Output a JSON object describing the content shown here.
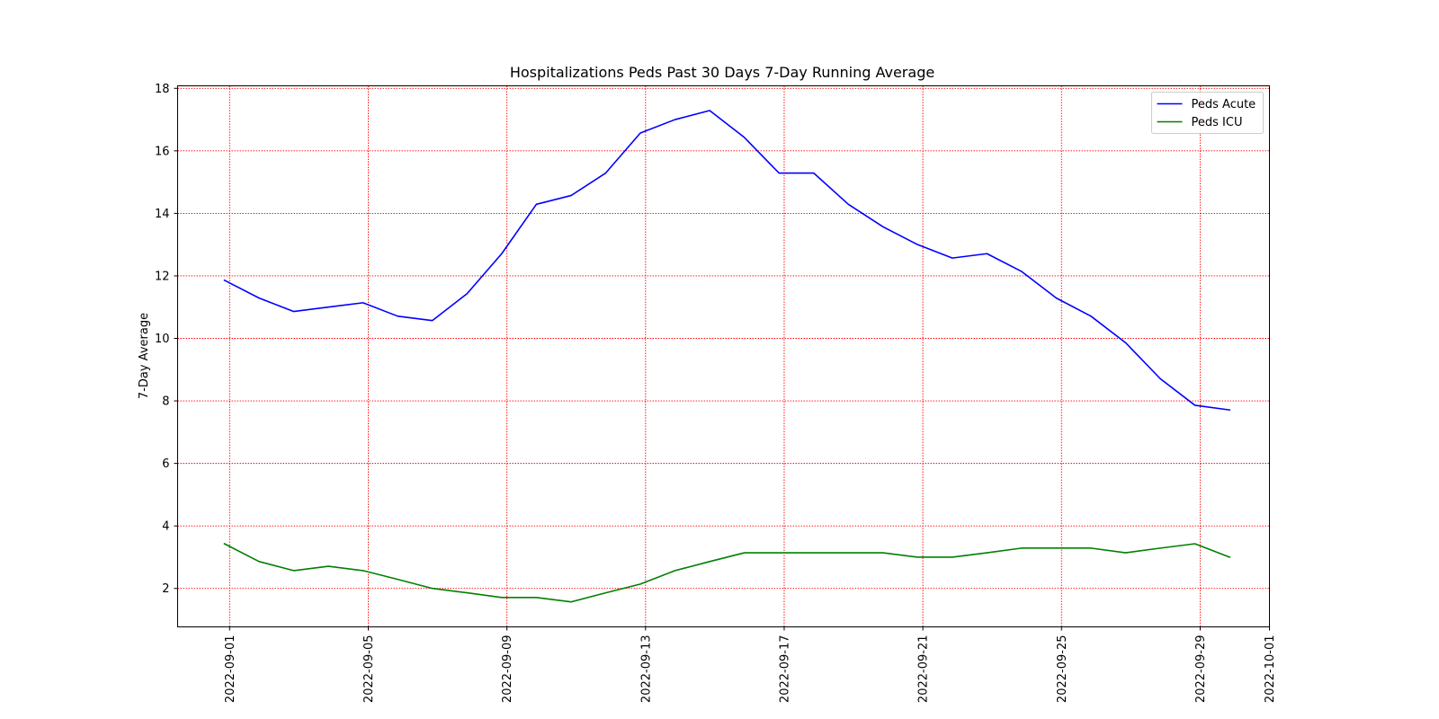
{
  "chart_data": {
    "type": "line",
    "title": "Hospitalizations Peds Past 30 Days 7-Day Running Average",
    "xlabel": "",
    "ylabel": "7-Day Average",
    "x_tick_labels": [
      "2022-09-01",
      "2022-09-05",
      "2022-09-09",
      "2022-09-13",
      "2022-09-17",
      "2022-09-21",
      "2022-09-25",
      "2022-09-29",
      "2022-10-01"
    ],
    "x_ticks_days": [
      1,
      5,
      9,
      13,
      17,
      21,
      25,
      29,
      31
    ],
    "x_range_days": [
      -0.5,
      31
    ],
    "y_ticks": [
      2,
      4,
      6,
      8,
      10,
      12,
      14,
      16,
      18
    ],
    "ylim": [
      0.77,
      18.08
    ],
    "grid": true,
    "grid_color": "#ff0000",
    "legend_position": "upper right",
    "x_days": [
      0.85,
      1.85,
      2.85,
      3.85,
      4.85,
      5.85,
      6.85,
      7.85,
      8.85,
      9.85,
      10.85,
      11.85,
      12.85,
      13.85,
      14.85,
      15.85,
      16.85,
      17.85,
      18.85,
      19.85,
      20.85,
      21.85,
      22.85,
      23.85,
      24.85,
      25.85,
      26.85,
      27.85,
      28.85,
      29.85
    ],
    "series": [
      {
        "name": "Peds Acute",
        "color": "#0000ff",
        "values": [
          11.86,
          11.29,
          10.86,
          11.0,
          11.14,
          10.71,
          10.57,
          11.43,
          12.71,
          14.29,
          14.57,
          15.29,
          16.57,
          17.0,
          17.29,
          16.43,
          15.29,
          15.29,
          14.29,
          13.57,
          13.0,
          12.57,
          12.71,
          12.14,
          11.29,
          10.71,
          9.86,
          8.71,
          7.86,
          7.71
        ]
      },
      {
        "name": "Peds ICU",
        "color": "#008000",
        "values": [
          3.43,
          2.86,
          2.57,
          2.71,
          2.57,
          2.29,
          2.0,
          1.86,
          1.71,
          1.71,
          1.57,
          1.86,
          2.14,
          2.57,
          2.86,
          3.14,
          3.14,
          3.14,
          3.14,
          3.14,
          3.0,
          3.0,
          3.14,
          3.29,
          3.29,
          3.29,
          3.14,
          3.29,
          3.43,
          3.0
        ]
      }
    ]
  }
}
